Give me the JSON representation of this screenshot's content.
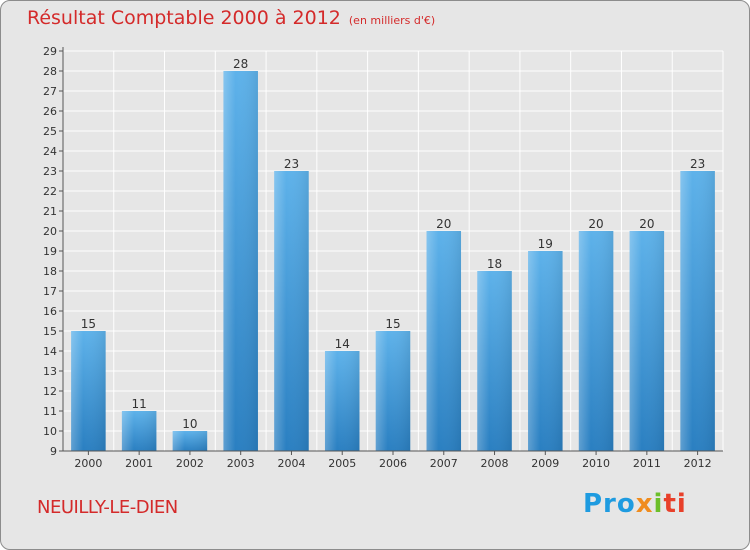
{
  "chart_data": {
    "type": "bar",
    "title": "Résultat Comptable 2000 à 2012",
    "subtitle": "(en milliers d'€)",
    "categories": [
      "2000",
      "2001",
      "2002",
      "2003",
      "2004",
      "2005",
      "2006",
      "2007",
      "2008",
      "2009",
      "2010",
      "2011",
      "2012"
    ],
    "values": [
      15,
      11,
      10,
      28,
      23,
      14,
      15,
      20,
      18,
      19,
      20,
      20,
      23
    ],
    "ylim": [
      9,
      29
    ],
    "yticks": [
      9,
      10,
      11,
      12,
      13,
      14,
      15,
      16,
      17,
      18,
      19,
      20,
      21,
      22,
      23,
      24,
      25,
      26,
      27,
      28,
      29
    ],
    "grid": true,
    "xlabel": "",
    "ylabel": ""
  },
  "commune": "NEUILLY-LE-DIEN",
  "logo": {
    "p1": "Pro",
    "p2": "x",
    "p3": "i",
    "p4": "ti"
  },
  "colors": {
    "bar_top": "#5eb2ea",
    "bar_bottom": "#2a7fc1",
    "title": "#d42a2a",
    "background": "#e6e6e6"
  }
}
